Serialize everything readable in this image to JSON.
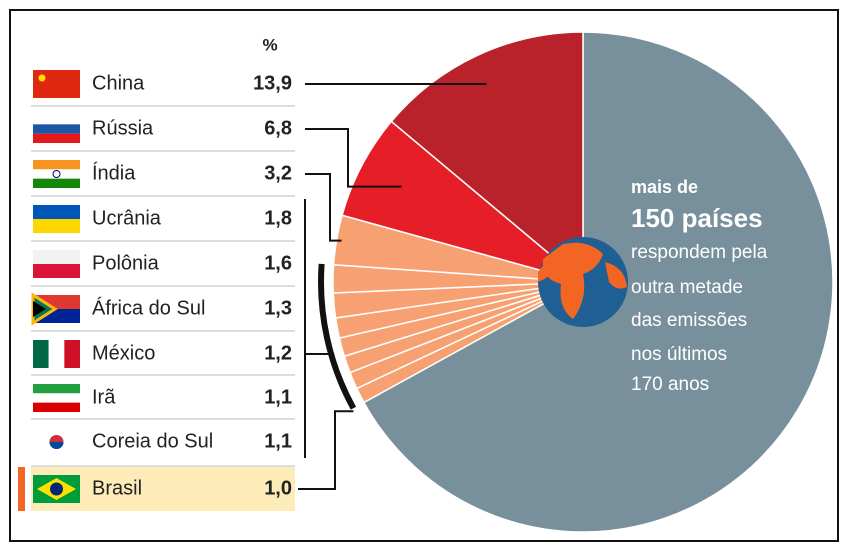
{
  "chart_data": {
    "type": "pie",
    "value_header": "%",
    "categories": [
      "China",
      "Rússia",
      "Índia",
      "Ucrânia",
      "Polônia",
      "África do Sul",
      "México",
      "Irã",
      "Coreia do Sul",
      "Brasil"
    ],
    "values": [
      13.9,
      6.8,
      3.2,
      1.8,
      1.6,
      1.3,
      1.2,
      1.1,
      1.1,
      1.0
    ],
    "value_labels": [
      "13,9",
      "6,8",
      "3,2",
      "1,8",
      "1,6",
      "1,3",
      "1,2",
      "1,1",
      "1,1",
      "1,0"
    ],
    "colors": [
      "#b9222a",
      "#e61e28",
      "#f7a172",
      "#f7a172",
      "#f7a172",
      "#f7a172",
      "#f7a172",
      "#f7a172",
      "#f7a172",
      "#f7a172"
    ],
    "highlight": "Brasil",
    "rest": {
      "value": 67,
      "color": "#78909c",
      "text": [
        "mais de",
        "150 países",
        "respondem pela",
        "outra metade",
        "das emissões",
        "nos últimos",
        "170 anos"
      ]
    }
  }
}
